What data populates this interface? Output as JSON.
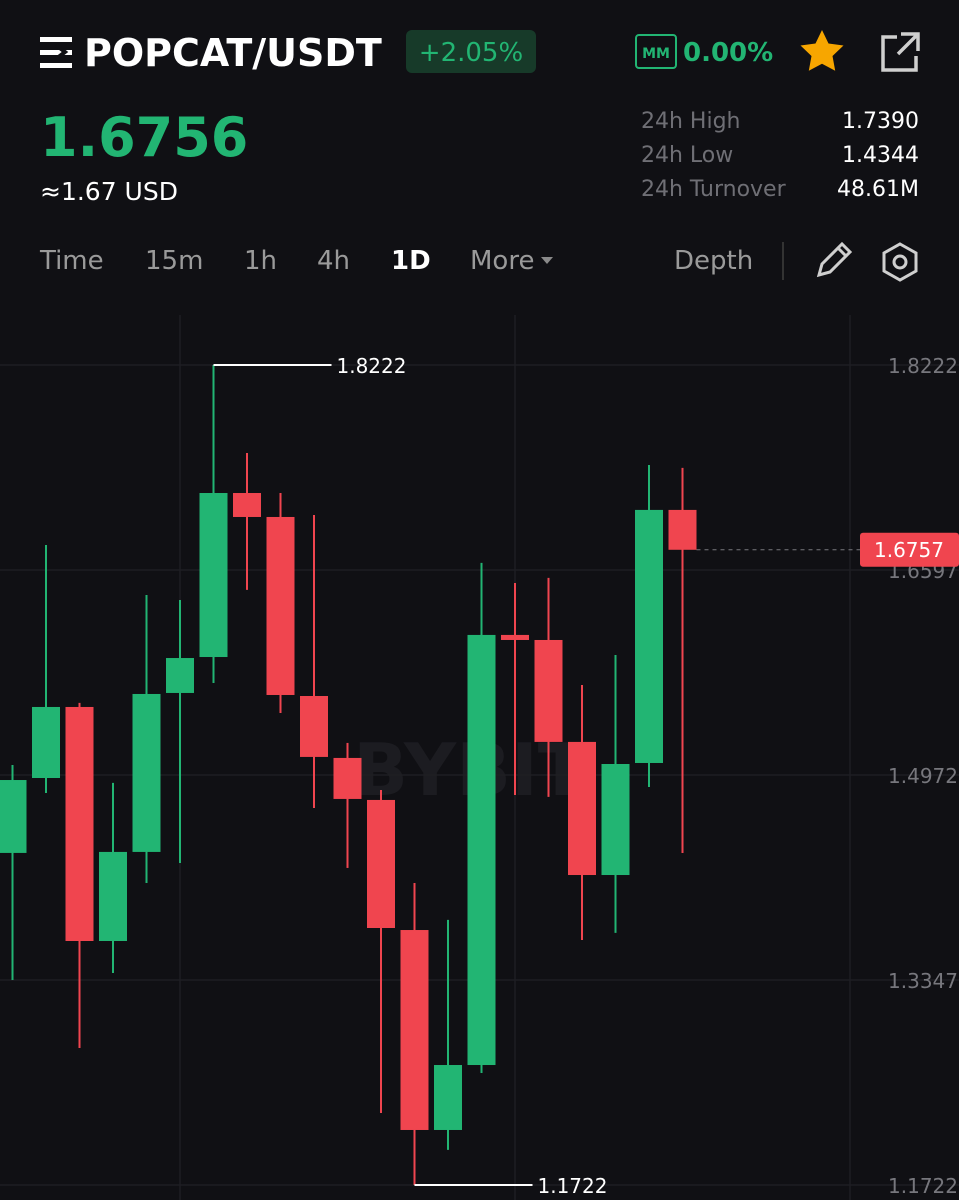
{
  "header": {
    "pair": "POPCAT/USDT",
    "change": "+2.05%",
    "mm_badge": "MM",
    "mm_rate": "0.00%"
  },
  "price": {
    "last": "1.6756",
    "approx": "≈1.67 USD"
  },
  "stats": [
    {
      "label": "24h High",
      "value": "1.7390"
    },
    {
      "label": "24h Low",
      "value": "1.4344"
    },
    {
      "label": "24h Turnover",
      "value": "48.61M"
    }
  ],
  "tabs": [
    "Time",
    "15m",
    "1h",
    "4h",
    "1D",
    "More"
  ],
  "active_tab": 4,
  "depth": "Depth",
  "chart_data": {
    "type": "candlestick",
    "watermark": "BYBIT",
    "up_color": "#22b573",
    "down_color": "#f0454f",
    "grid": true,
    "ylim": [
      1.1603,
      1.8618
    ],
    "yticks": [
      1.8222,
      1.6597,
      1.4972,
      1.3347,
      1.1722
    ],
    "candles": [
      {
        "open": 1.4354,
        "high": 1.5051,
        "low": 1.3347,
        "close": 1.4932
      },
      {
        "open": 1.4948,
        "high": 1.6795,
        "low": 1.4829,
        "close": 1.5511
      },
      {
        "open": 1.5511,
        "high": 1.5543,
        "low": 1.2808,
        "close": 1.3656
      },
      {
        "open": 1.3656,
        "high": 1.4909,
        "low": 1.3402,
        "close": 1.4362
      },
      {
        "open": 1.4362,
        "high": 1.6399,
        "low": 1.4116,
        "close": 1.5614
      },
      {
        "open": 1.5622,
        "high": 1.6359,
        "low": 1.4274,
        "close": 1.5899
      },
      {
        "open": 1.5907,
        "high": 1.8222,
        "low": 1.5701,
        "close": 1.7207
      },
      {
        "open": 1.7207,
        "high": 1.7524,
        "low": 1.6439,
        "close": 1.7017
      },
      {
        "open": 1.7017,
        "high": 1.7207,
        "low": 1.5463,
        "close": 1.5606
      },
      {
        "open": 1.5598,
        "high": 1.7033,
        "low": 1.471,
        "close": 1.5115
      },
      {
        "open": 1.5107,
        "high": 1.5226,
        "low": 1.4235,
        "close": 1.4782
      },
      {
        "open": 1.4774,
        "high": 1.4853,
        "low": 1.2293,
        "close": 1.3759
      },
      {
        "open": 1.3743,
        "high": 1.4116,
        "low": 1.1722,
        "close": 1.2158
      },
      {
        "open": 1.2158,
        "high": 1.3823,
        "low": 1.2,
        "close": 1.2673
      },
      {
        "open": 1.2673,
        "high": 1.6653,
        "low": 1.261,
        "close": 1.6082
      },
      {
        "open": 1.6082,
        "high": 1.6494,
        "low": 1.4813,
        "close": 1.6042
      },
      {
        "open": 1.6042,
        "high": 1.6534,
        "low": 1.4798,
        "close": 1.5234
      },
      {
        "open": 1.5234,
        "high": 1.5685,
        "low": 1.3664,
        "close": 1.4179
      },
      {
        "open": 1.4179,
        "high": 1.5923,
        "low": 1.372,
        "close": 1.5059
      },
      {
        "open": 1.5067,
        "high": 1.7429,
        "low": 1.4877,
        "close": 1.7073
      },
      {
        "open": 1.7073,
        "high": 1.7406,
        "low": 1.4354,
        "close": 1.6757
      }
    ]
  }
}
